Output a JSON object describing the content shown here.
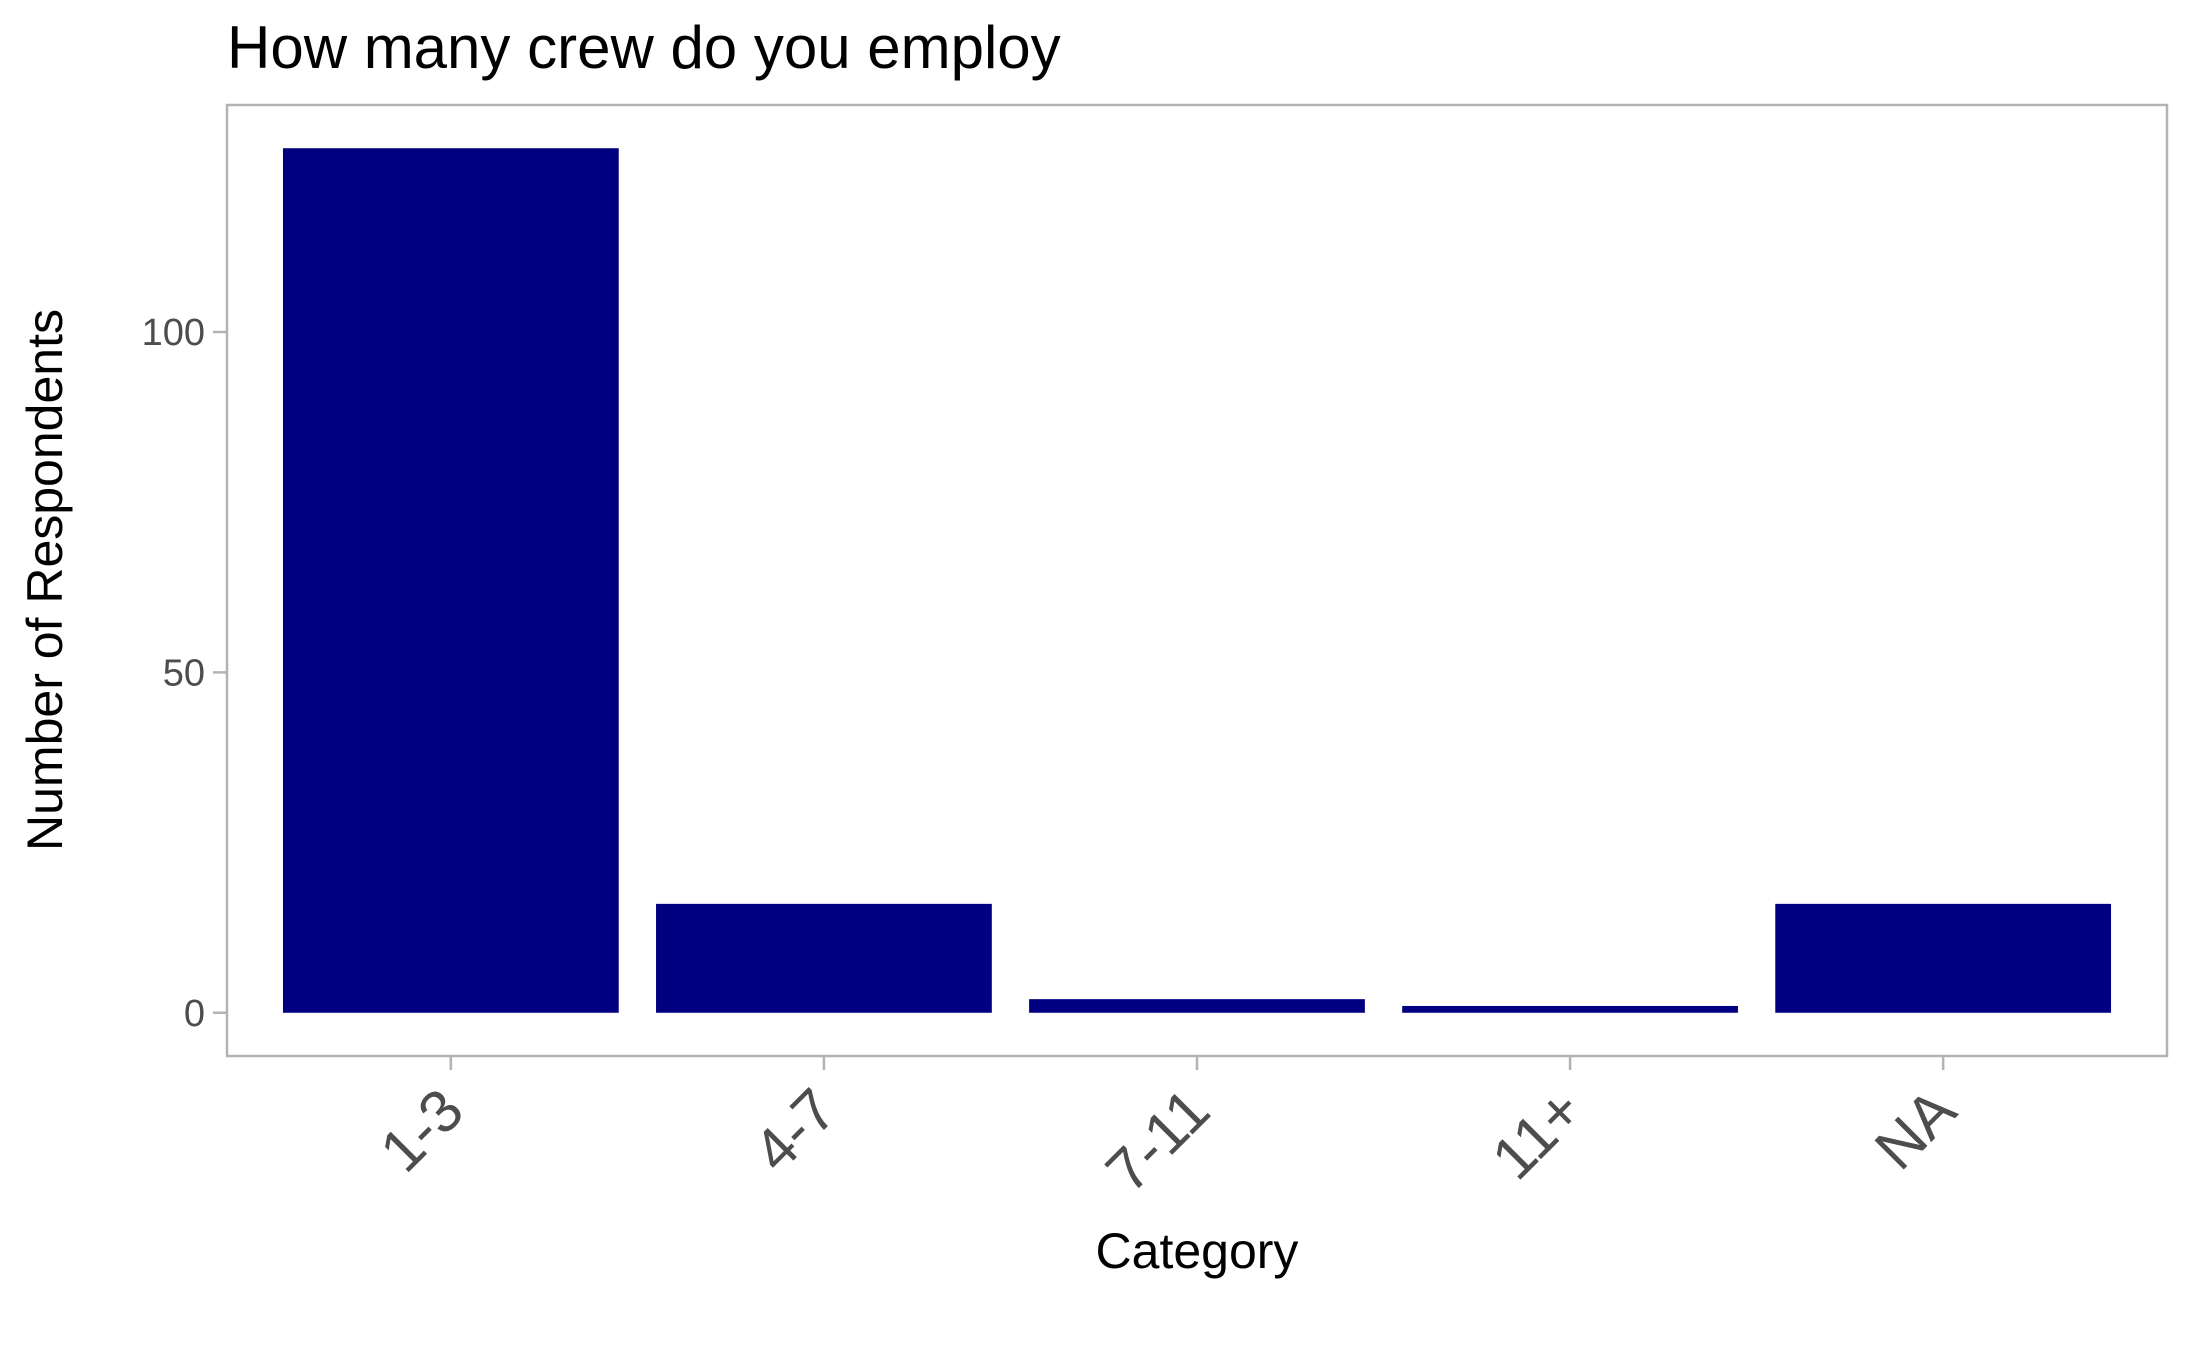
{
  "chart_data": {
    "type": "bar",
    "title": "How many crew do you employ",
    "xlabel": "Category",
    "ylabel": "Number of Respondents",
    "categories": [
      "1-3",
      "4-7",
      "7-11",
      "11+",
      "NA"
    ],
    "values": [
      127,
      16,
      2,
      1,
      16
    ],
    "yticks": [
      0,
      50,
      100
    ],
    "ylim": [
      -6.35,
      133.35
    ],
    "bar_color": "#000080",
    "grid": false,
    "legend": "none"
  }
}
